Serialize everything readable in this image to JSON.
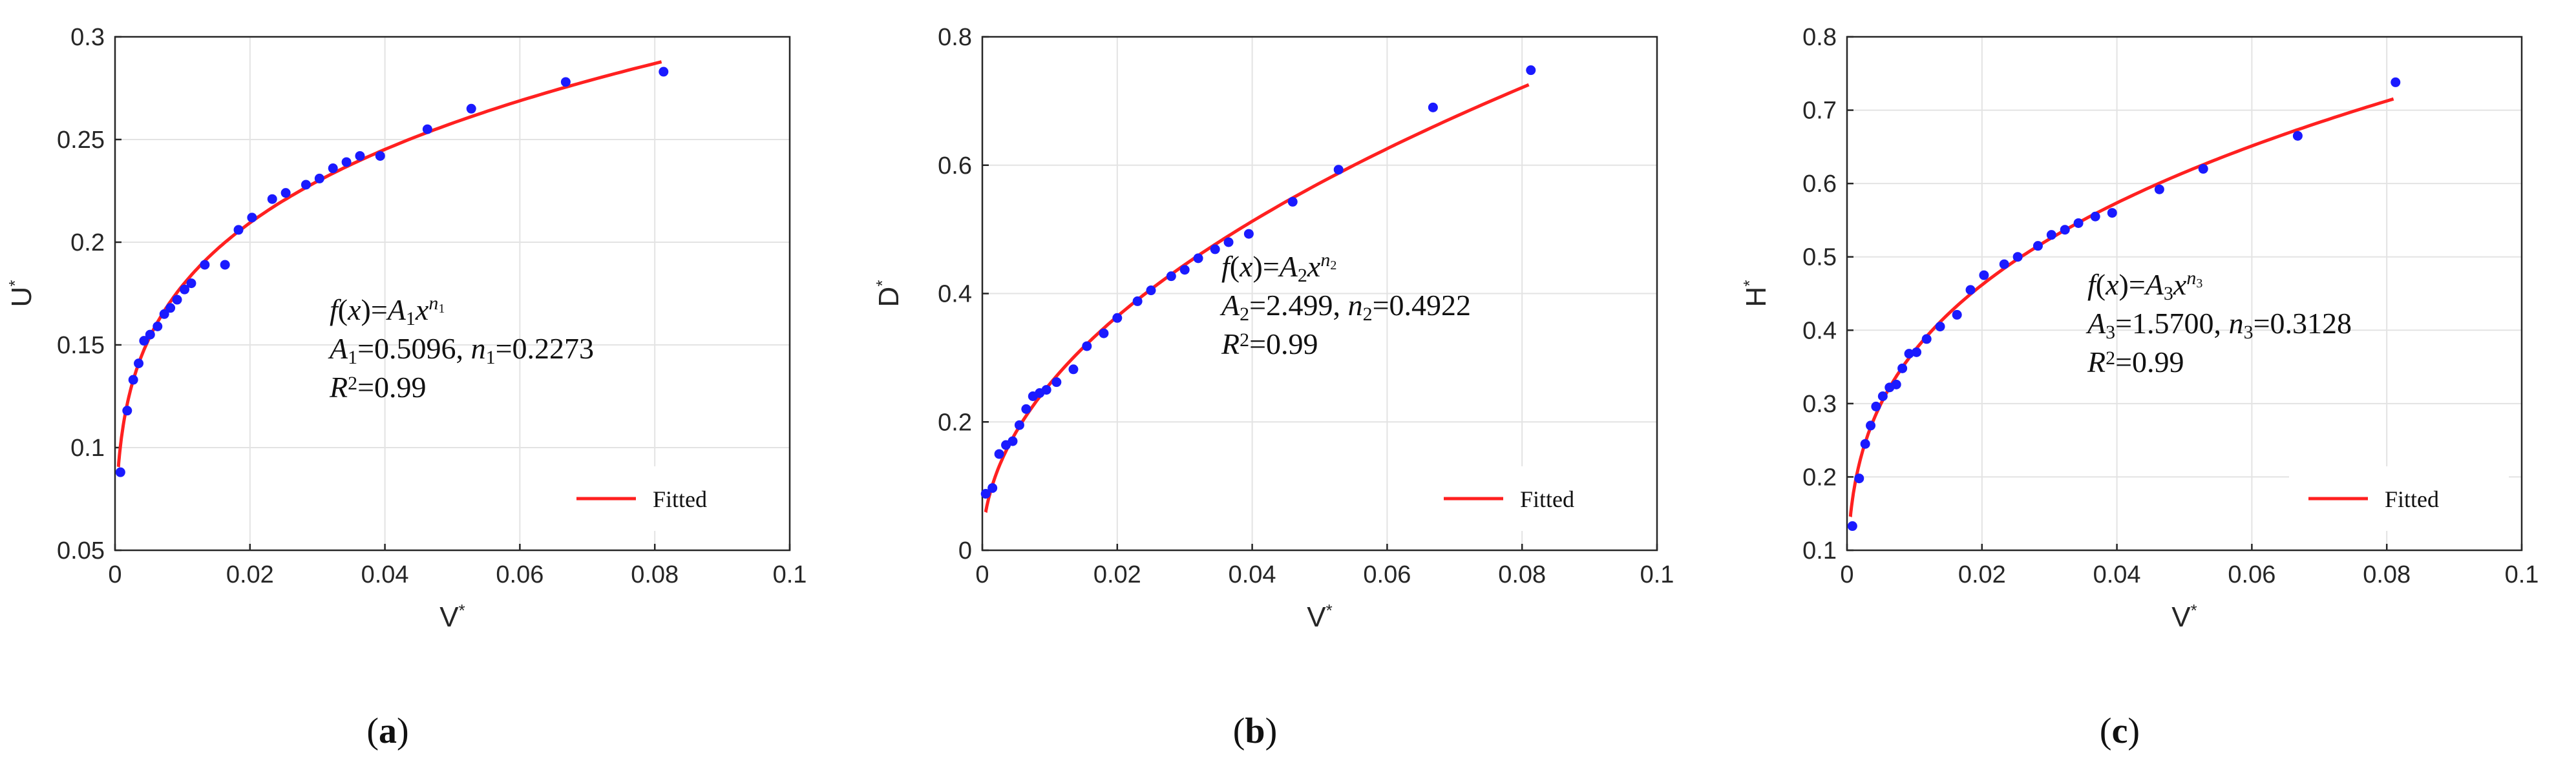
{
  "figure": {
    "panel_labels": [
      "(a)",
      "(b)",
      "(c)"
    ],
    "legend_label": "Fitted",
    "x_axis_label": "V",
    "axis_label_superscript": "*"
  },
  "colors": {
    "fit_line": "#ff2020",
    "points": "#1a1aff",
    "grid": "#e3e3e3",
    "axis": "#262626"
  },
  "chart_data": [
    {
      "type": "scatter",
      "xlabel": "V*",
      "ylabel": "U*",
      "xlim": [
        0,
        0.1
      ],
      "ylim": [
        0.05,
        0.3
      ],
      "xticks": [
        0,
        0.02,
        0.04,
        0.06,
        0.08,
        0.1
      ],
      "yticks": [
        0.05,
        0.1,
        0.15,
        0.2,
        0.25,
        0.3
      ],
      "xtick_labels": [
        "0",
        "0.02",
        "0.04",
        "0.06",
        "0.08",
        "0.1"
      ],
      "ytick_labels": [
        "0.05",
        "0.1",
        "0.15",
        "0.2",
        "0.25",
        "0.3"
      ],
      "grid": true,
      "legend": "bottom-right",
      "annotation": [
        "f(x)=A1x^n1",
        "A1=0.5096, n1=0.2273",
        "R2=0.99"
      ],
      "fit": {
        "A": 0.5096,
        "n": 0.2273,
        "x_start": 0.0005,
        "x_end": 0.081
      },
      "points": {
        "x": [
          0.0008,
          0.0018,
          0.0027,
          0.0035,
          0.0043,
          0.0052,
          0.0063,
          0.0073,
          0.0082,
          0.0092,
          0.0103,
          0.0113,
          0.0133,
          0.0163,
          0.0183,
          0.0203,
          0.0233,
          0.0253,
          0.0283,
          0.0303,
          0.0323,
          0.0343,
          0.0363,
          0.0393,
          0.0463,
          0.0528,
          0.0668,
          0.0813
        ],
        "y": [
          0.088,
          0.118,
          0.133,
          0.141,
          0.152,
          0.155,
          0.159,
          0.165,
          0.168,
          0.172,
          0.177,
          0.18,
          0.189,
          0.189,
          0.206,
          0.212,
          0.221,
          0.224,
          0.228,
          0.231,
          0.236,
          0.239,
          0.242,
          0.242,
          0.255,
          0.265,
          0.278,
          0.283
        ]
      }
    },
    {
      "type": "scatter",
      "xlabel": "V*",
      "ylabel": "D*",
      "xlim": [
        0,
        0.1
      ],
      "ylim": [
        0,
        0.8
      ],
      "xticks": [
        0,
        0.02,
        0.04,
        0.06,
        0.08,
        0.1
      ],
      "yticks": [
        0,
        0.2,
        0.4,
        0.6,
        0.8
      ],
      "xtick_labels": [
        "0",
        "0.02",
        "0.04",
        "0.06",
        "0.08",
        "0.1"
      ],
      "ytick_labels": [
        "0",
        "0.2",
        "0.4",
        "0.6",
        "0.8"
      ],
      "grid": true,
      "legend": "bottom-right",
      "annotation": [
        "f(x)=A2x^n2",
        "A2=2.499, n2=0.4922",
        "R2=0.99"
      ],
      "fit": {
        "A": 2.499,
        "n": 0.4922,
        "x_start": 0.0005,
        "x_end": 0.081
      },
      "points": {
        "x": [
          0.0005,
          0.0015,
          0.0025,
          0.0035,
          0.0045,
          0.0055,
          0.0065,
          0.0075,
          0.0085,
          0.0095,
          0.011,
          0.0135,
          0.0155,
          0.018,
          0.02,
          0.023,
          0.025,
          0.028,
          0.03,
          0.032,
          0.0345,
          0.0365,
          0.0395,
          0.046,
          0.0528,
          0.0668,
          0.0813
        ],
        "y": [
          0.088,
          0.097,
          0.15,
          0.164,
          0.17,
          0.195,
          0.22,
          0.24,
          0.245,
          0.25,
          0.262,
          0.282,
          0.318,
          0.338,
          0.362,
          0.388,
          0.405,
          0.427,
          0.437,
          0.455,
          0.469,
          0.48,
          0.493,
          0.543,
          0.593,
          0.69,
          0.748
        ]
      }
    },
    {
      "type": "scatter",
      "xlabel": "V*",
      "ylabel": "H*",
      "xlim": [
        0,
        0.1
      ],
      "ylim": [
        0.1,
        0.8
      ],
      "xticks": [
        0,
        0.02,
        0.04,
        0.06,
        0.08,
        0.1
      ],
      "yticks": [
        0.1,
        0.2,
        0.3,
        0.4,
        0.5,
        0.6,
        0.7,
        0.8
      ],
      "xtick_labels": [
        "0",
        "0.02",
        "0.04",
        "0.06",
        "0.08",
        "0.1"
      ],
      "ytick_labels": [
        "0.1",
        "0.2",
        "0.3",
        "0.4",
        "0.5",
        "0.6",
        "0.7",
        "0.8"
      ],
      "grid": true,
      "legend": "bottom-right",
      "annotation": [
        "f(x)=A3x^n3",
        "A3=1.5700, n3=0.3128",
        "R2=0.99"
      ],
      "fit": {
        "A": 1.57,
        "n": 0.3128,
        "x_start": 0.0005,
        "x_end": 0.081
      },
      "points": {
        "x": [
          0.0008,
          0.0018,
          0.0027,
          0.0035,
          0.0043,
          0.0053,
          0.0063,
          0.0073,
          0.0082,
          0.0092,
          0.0103,
          0.0118,
          0.0138,
          0.0163,
          0.0183,
          0.0203,
          0.0233,
          0.0253,
          0.0283,
          0.0303,
          0.0323,
          0.0343,
          0.0368,
          0.0393,
          0.0463,
          0.0528,
          0.0668,
          0.0813
        ],
        "y": [
          0.133,
          0.198,
          0.245,
          0.27,
          0.296,
          0.31,
          0.322,
          0.326,
          0.348,
          0.368,
          0.37,
          0.388,
          0.405,
          0.421,
          0.455,
          0.475,
          0.49,
          0.5,
          0.515,
          0.53,
          0.537,
          0.546,
          0.555,
          0.56,
          0.592,
          0.62,
          0.665,
          0.738
        ]
      }
    }
  ]
}
